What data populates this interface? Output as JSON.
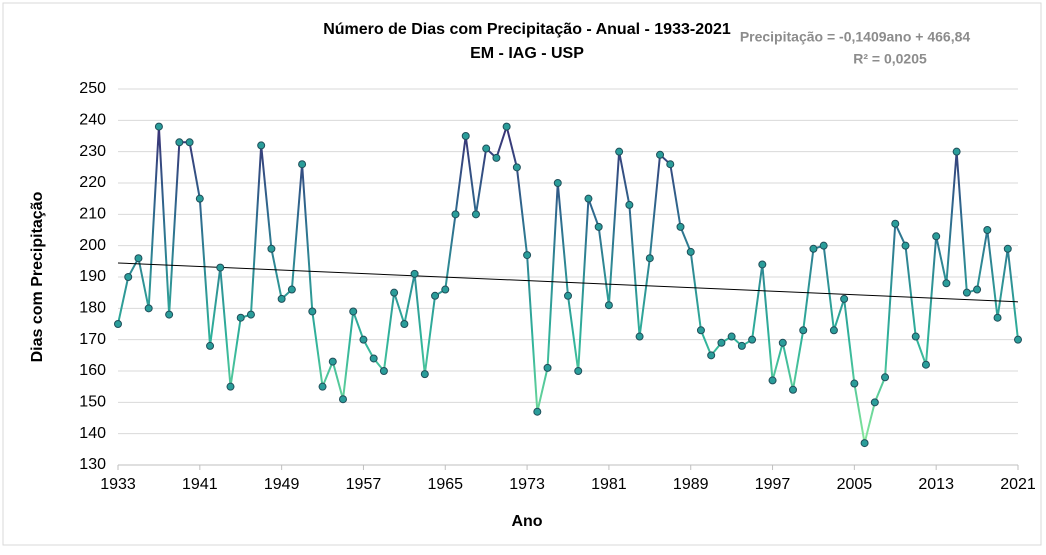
{
  "chart_data": {
    "type": "line",
    "title": "Número de Dias com Precipitação - Anual - 1933-2021",
    "subtitle": "EM - IAG - USP",
    "annotations": [
      "Precipitação = -0,1409ano + 466,84",
      "R² = 0,0205"
    ],
    "xlabel": "Ano",
    "ylabel": "Dias com Precipitação",
    "x": [
      1933,
      1934,
      1935,
      1936,
      1937,
      1938,
      1939,
      1940,
      1941,
      1942,
      1943,
      1944,
      1945,
      1946,
      1947,
      1948,
      1949,
      1950,
      1951,
      1952,
      1953,
      1954,
      1955,
      1956,
      1957,
      1958,
      1959,
      1960,
      1961,
      1962,
      1963,
      1964,
      1965,
      1966,
      1967,
      1968,
      1969,
      1970,
      1971,
      1972,
      1973,
      1974,
      1975,
      1976,
      1977,
      1978,
      1979,
      1980,
      1981,
      1982,
      1983,
      1984,
      1985,
      1986,
      1987,
      1988,
      1989,
      1990,
      1991,
      1992,
      1993,
      1994,
      1995,
      1996,
      1997,
      1998,
      1999,
      2000,
      2001,
      2002,
      2003,
      2004,
      2005,
      2006,
      2007,
      2008,
      2009,
      2010,
      2011,
      2012,
      2013,
      2014,
      2015,
      2016,
      2017,
      2018,
      2019,
      2020,
      2021
    ],
    "values": [
      175,
      190,
      196,
      180,
      238,
      178,
      233,
      233,
      215,
      168,
      193,
      155,
      177,
      178,
      232,
      199,
      183,
      186,
      226,
      179,
      155,
      163,
      151,
      179,
      170,
      164,
      160,
      185,
      175,
      191,
      159,
      184,
      186,
      210,
      235,
      210,
      231,
      228,
      238,
      225,
      197,
      147,
      161,
      220,
      184,
      160,
      215,
      206,
      181,
      230,
      213,
      171,
      196,
      229,
      226,
      206,
      198,
      173,
      165,
      169,
      171,
      168,
      170,
      194,
      157,
      169,
      154,
      173,
      199,
      200,
      173,
      183,
      156,
      137,
      150,
      158,
      207,
      200,
      171,
      162,
      203,
      188,
      230,
      185,
      186,
      205,
      177,
      199,
      170
    ],
    "marker_color": "#2a9d9a",
    "line_gradient": [
      "#40196b",
      "#2e6a8e",
      "#2fb39b",
      "#9af29a"
    ],
    "trendline": {
      "x": [
        1933,
        2021
      ],
      "values": [
        194.48,
        182.08
      ],
      "color": "#000000"
    },
    "xlim": [
      1933,
      2021
    ],
    "xticks": [
      1933,
      1941,
      1949,
      1957,
      1965,
      1973,
      1981,
      1989,
      1997,
      2005,
      2013,
      2021
    ],
    "ylim": [
      130,
      250
    ],
    "yticks": [
      130,
      140,
      150,
      160,
      170,
      180,
      190,
      200,
      210,
      220,
      230,
      240,
      250
    ],
    "grid": true
  }
}
